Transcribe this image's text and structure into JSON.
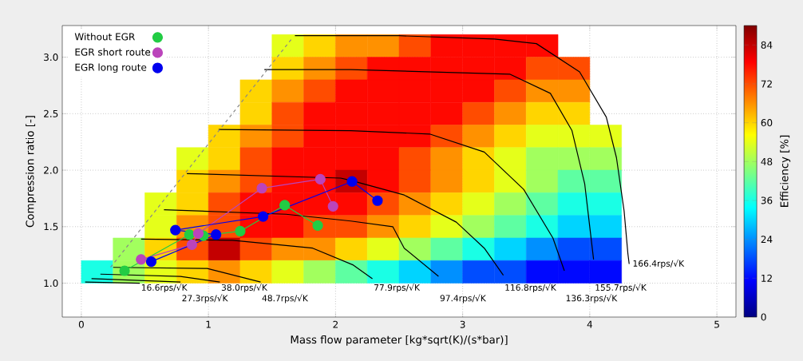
{
  "chart_data": {
    "type": "heatmap",
    "xlabel": "Mass flow parameter [kg*sqrt(K)/(s*bar)]",
    "ylabel": "Compression ratio [-]",
    "clabel": "Efficiency [%]",
    "xlim": [
      -0.15,
      5.15
    ],
    "ylim": [
      0.7,
      3.28
    ],
    "xticks": [
      0,
      1,
      2,
      3,
      4,
      5
    ],
    "yticks": [
      {
        "value": 1,
        "label": "1.0"
      },
      {
        "value": 1.5,
        "label": "1.5"
      },
      {
        "value": 2,
        "label": "2.0"
      },
      {
        "value": 2.5,
        "label": "2.5"
      },
      {
        "value": 3,
        "label": "3.0"
      }
    ],
    "clim": [
      0,
      90
    ],
    "cticks": [
      0,
      12,
      24,
      36,
      48,
      60,
      72,
      84
    ],
    "grid": true,
    "legend": "top left",
    "marker": "circle",
    "x": [
      0.125,
      0.375,
      0.625,
      0.875,
      1.125,
      1.375,
      1.625,
      1.875,
      2.125,
      2.375,
      2.625,
      2.875,
      3.125,
      3.375,
      3.625,
      3.875,
      4.125
    ],
    "y": [
      3.1,
      2.9,
      2.7,
      2.5,
      2.3,
      2.1,
      1.9,
      1.7,
      1.5,
      1.3,
      1.1
    ],
    "cells": [
      [
        null,
        null,
        null,
        null,
        null,
        null,
        54,
        60,
        66,
        66,
        72,
        78,
        78,
        78,
        78,
        null,
        null
      ],
      [
        null,
        null,
        null,
        null,
        null,
        null,
        60,
        66,
        72,
        78,
        78,
        78,
        78,
        78,
        72,
        72,
        null
      ],
      [
        null,
        null,
        null,
        null,
        null,
        60,
        66,
        72,
        78,
        78,
        78,
        78,
        78,
        72,
        66,
        66,
        null
      ],
      [
        null,
        null,
        null,
        null,
        null,
        60,
        72,
        78,
        78,
        78,
        78,
        78,
        72,
        66,
        60,
        60,
        null
      ],
      [
        null,
        null,
        null,
        null,
        60,
        66,
        72,
        78,
        78,
        78,
        78,
        72,
        66,
        60,
        54,
        54,
        54
      ],
      [
        null,
        null,
        null,
        54,
        60,
        72,
        78,
        78,
        78,
        78,
        72,
        66,
        60,
        54,
        48,
        48,
        48
      ],
      [
        null,
        null,
        null,
        60,
        66,
        72,
        78,
        78,
        84,
        78,
        72,
        66,
        60,
        54,
        48,
        42,
        42
      ],
      [
        null,
        null,
        54,
        60,
        72,
        78,
        78,
        78,
        78,
        72,
        66,
        60,
        54,
        48,
        42,
        36,
        36
      ],
      [
        null,
        null,
        54,
        66,
        72,
        78,
        78,
        72,
        72,
        66,
        60,
        54,
        48,
        42,
        36,
        30,
        30
      ],
      [
        null,
        48,
        60,
        72,
        84,
        72,
        66,
        66,
        60,
        54,
        48,
        42,
        36,
        30,
        24,
        18,
        18
      ],
      [
        36,
        48,
        54,
        60,
        66,
        60,
        54,
        48,
        42,
        36,
        30,
        24,
        18,
        18,
        12,
        12,
        12
      ]
    ],
    "series": [
      {
        "type": "line",
        "name": "16.6rps/√K",
        "color": "#000000",
        "marker": "none",
        "x": [
          0.03,
          0.46
        ],
        "values": [
          1.01,
          1.0
        ]
      },
      {
        "type": "line",
        "name": "27.3rps/√K",
        "color": "#000000",
        "marker": "none",
        "x": [
          0.08,
          0.78
        ],
        "values": [
          1.04,
          1.01
        ]
      },
      {
        "type": "line",
        "name": "38.0rps/√K",
        "color": "#000000",
        "marker": "none",
        "x": [
          0.15,
          0.78,
          1.09
        ],
        "values": [
          1.08,
          1.06,
          1.01
        ]
      },
      {
        "type": "line",
        "name": "48.7rps/√K",
        "color": "#000000",
        "marker": "none",
        "x": [
          0.25,
          0.99,
          1.41
        ],
        "values": [
          1.14,
          1.13,
          1.01
        ]
      },
      {
        "type": "line",
        "name": "77.9rps/√K",
        "color": "#000000",
        "marker": "none",
        "x": [
          0.47,
          1.19,
          1.82,
          2.14,
          2.29
        ],
        "values": [
          1.39,
          1.38,
          1.31,
          1.16,
          1.04
        ]
      },
      {
        "type": "line",
        "name": "97.4rps/√K",
        "color": "#000000",
        "marker": "none",
        "x": [
          0.65,
          1.61,
          2.12,
          2.45,
          2.54,
          2.81
        ],
        "values": [
          1.65,
          1.61,
          1.55,
          1.5,
          1.31,
          1.06
        ]
      },
      {
        "type": "line",
        "name": "116.8rps/√K",
        "color": "#000000",
        "marker": "none",
        "x": [
          0.83,
          2.04,
          2.12,
          2.54,
          2.95,
          3.17,
          3.32
        ],
        "values": [
          1.97,
          1.93,
          1.91,
          1.78,
          1.54,
          1.31,
          1.07
        ]
      },
      {
        "type": "line",
        "name": "136.3rps/√K",
        "color": "#000000",
        "marker": "none",
        "x": [
          1.08,
          2.12,
          2.74,
          3.17,
          3.48,
          3.71,
          3.8
        ],
        "values": [
          2.36,
          2.35,
          2.32,
          2.16,
          1.83,
          1.4,
          1.11
        ]
      },
      {
        "type": "line",
        "name": "155.7rps/√K",
        "color": "#000000",
        "marker": "none",
        "x": [
          1.44,
          2.12,
          3.37,
          3.69,
          3.86,
          3.96,
          4.03
        ],
        "values": [
          2.89,
          2.89,
          2.85,
          2.68,
          2.35,
          1.88,
          1.21
        ]
      },
      {
        "type": "line",
        "name": "166.4rps/√K",
        "color": "#000000",
        "marker": "none",
        "x": [
          1.68,
          2.5,
          3.25,
          3.58,
          3.92,
          4.13,
          4.21,
          4.27,
          4.3,
          4.31
        ],
        "values": [
          3.19,
          3.19,
          3.16,
          3.12,
          2.87,
          2.47,
          2.11,
          1.64,
          1.26,
          1.17
        ]
      },
      {
        "type": "line",
        "color": "#888888",
        "marker": "none",
        "line_style": "dashed",
        "x": [
          0.23,
          1.66
        ],
        "values": [
          1.14,
          3.17
        ]
      },
      {
        "type": "line",
        "name": "Without EGR",
        "color": "#22cc44",
        "x": [
          0.34,
          0.85,
          0.96,
          1.25,
          1.6,
          1.86
        ],
        "values": [
          1.11,
          1.43,
          1.42,
          1.46,
          1.69,
          1.51
        ]
      },
      {
        "type": "line",
        "name": "EGR short route",
        "color": "#bb44bb",
        "x": [
          0.47,
          0.87,
          0.92,
          1.42,
          1.88,
          1.98
        ],
        "values": [
          1.21,
          1.34,
          1.44,
          1.84,
          1.92,
          1.68
        ]
      },
      {
        "type": "line",
        "name": "EGR long route",
        "color": "#0000ee",
        "x": [
          0.55,
          1.06,
          0.74,
          1.43,
          2.13,
          2.33
        ],
        "values": [
          1.19,
          1.43,
          1.47,
          1.59,
          1.9,
          1.73
        ]
      }
    ]
  }
}
